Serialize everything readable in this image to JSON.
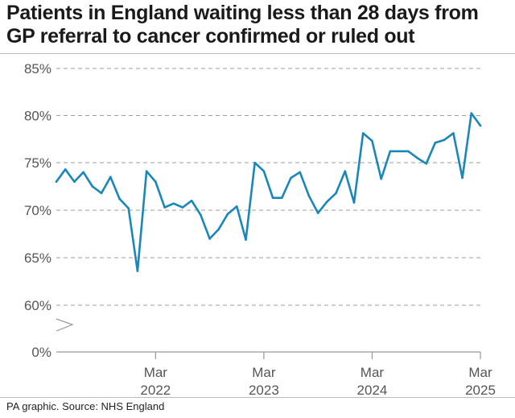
{
  "title": "Patients in England waiting less than 28 days from GP referral to cancer confirmed or ruled out",
  "footer": "PA graphic. Source: NHS England",
  "colors": {
    "line": "#1a87b8",
    "grid": "#9e9e9e",
    "axis": "#999999",
    "text": "#555555"
  },
  "chart_data": {
    "type": "line",
    "title": "Patients in England waiting less than 28 days from GP referral to cancer confirmed or ruled out",
    "xlabel": "",
    "ylabel": "",
    "y_ticks": [
      0,
      60,
      65,
      70,
      75,
      80,
      85
    ],
    "y_tick_labels": [
      "0%",
      "60%",
      "65%",
      "70%",
      "75%",
      "80%",
      "85%"
    ],
    "axis_break": true,
    "grid": "horizontal-dashed",
    "x_ticks": [
      {
        "date": "2022-03",
        "label": [
          "Mar",
          "2022"
        ]
      },
      {
        "date": "2023-03",
        "label": [
          "Mar",
          "2023"
        ]
      },
      {
        "date": "2024-03",
        "label": [
          "Mar",
          "2024"
        ]
      },
      {
        "date": "2025-03",
        "label": [
          "Mar",
          "2025"
        ]
      }
    ],
    "series": [
      {
        "dates": [
          "2021-04",
          "2021-05",
          "2021-06",
          "2021-07",
          "2021-08",
          "2021-09",
          "2021-10",
          "2021-11",
          "2021-12",
          "2022-01",
          "2022-02",
          "2022-03",
          "2022-04",
          "2022-05",
          "2022-06",
          "2022-07",
          "2022-08",
          "2022-09",
          "2022-10",
          "2022-11",
          "2022-12",
          "2023-01",
          "2023-02",
          "2023-03",
          "2023-04",
          "2023-05",
          "2023-06",
          "2023-07",
          "2023-08",
          "2023-09",
          "2023-10",
          "2023-11",
          "2023-12",
          "2024-01",
          "2024-02",
          "2024-03",
          "2024-04",
          "2024-05",
          "2024-06",
          "2024-07",
          "2024-08",
          "2024-09",
          "2024-10",
          "2024-11",
          "2024-12",
          "2025-01",
          "2025-02",
          "2025-03"
        ],
        "values": [
          73.0,
          74.3,
          73.0,
          74.0,
          72.5,
          71.8,
          73.5,
          71.2,
          70.2,
          63.6,
          74.1,
          73.0,
          70.3,
          70.7,
          70.3,
          71.0,
          69.5,
          67.0,
          68.0,
          69.6,
          70.4,
          66.9,
          75.0,
          74.1,
          71.3,
          71.3,
          73.4,
          74.0,
          71.5,
          69.7,
          70.9,
          71.8,
          74.1,
          70.8,
          78.1,
          77.3,
          73.3,
          76.2,
          76.2,
          76.2,
          75.5,
          74.9,
          77.1,
          77.4,
          78.1,
          73.4,
          80.2,
          78.9
        ]
      }
    ]
  }
}
